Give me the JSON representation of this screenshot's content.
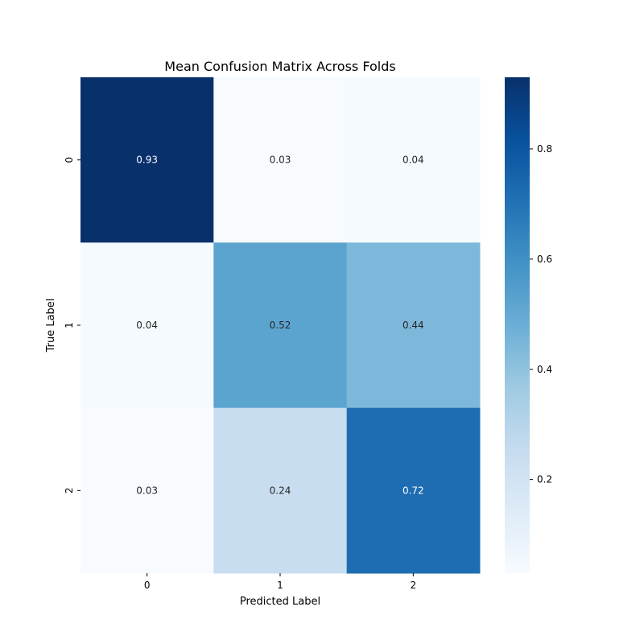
{
  "chart_data": {
    "type": "heatmap",
    "title": "Mean Confusion Matrix Across Folds",
    "xlabel": "Predicted Label",
    "ylabel": "True Label",
    "x_categories": [
      "0",
      "1",
      "2"
    ],
    "y_categories": [
      "0",
      "1",
      "2"
    ],
    "values": [
      [
        0.93,
        0.03,
        0.04
      ],
      [
        0.04,
        0.52,
        0.44
      ],
      [
        0.03,
        0.24,
        0.72
      ]
    ],
    "cell_labels": [
      [
        "0.93",
        "0.03",
        "0.04"
      ],
      [
        "0.04",
        "0.52",
        "0.44"
      ],
      [
        "0.03",
        "0.24",
        "0.72"
      ]
    ],
    "colormap": "Blues",
    "color_range": [
      0.03,
      0.93
    ],
    "colorbar_ticks": [
      0.2,
      0.4,
      0.6,
      0.8
    ],
    "colorbar_tick_labels": [
      "0.2",
      "0.4",
      "0.6",
      "0.8"
    ],
    "grid": false
  }
}
